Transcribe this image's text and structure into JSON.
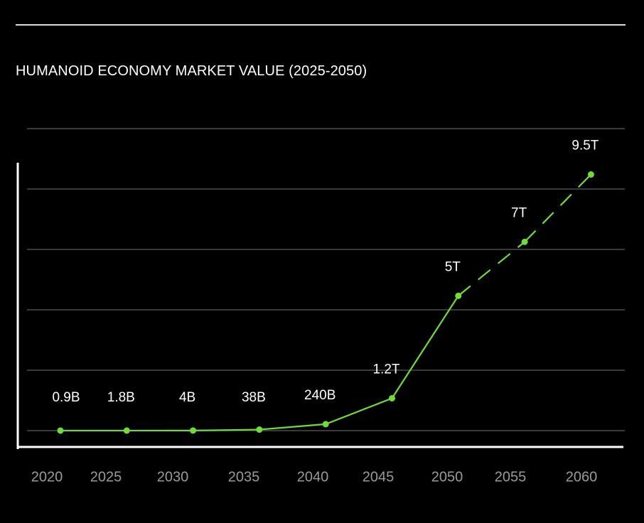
{
  "chart_data": {
    "type": "line",
    "title": "HUMANOID ECONOMY MARKET VALUE (2025-2050)",
    "xlabel": "",
    "ylabel": "",
    "x_ticks": [
      "2020",
      "2025",
      "2030",
      "2035",
      "2040",
      "2045",
      "2050",
      "2055",
      "2060"
    ],
    "grid": true,
    "points": [
      {
        "label": "0.9B",
        "value_billion": 0.9,
        "projected": false
      },
      {
        "label": "1.8B",
        "value_billion": 1.8,
        "projected": false
      },
      {
        "label": "4B",
        "value_billion": 4,
        "projected": false
      },
      {
        "label": "38B",
        "value_billion": 38,
        "projected": false
      },
      {
        "label": "240B",
        "value_billion": 240,
        "projected": false
      },
      {
        "label": "1.2T",
        "value_billion": 1200,
        "projected": false
      },
      {
        "label": "5T",
        "value_billion": 5000,
        "projected": false
      },
      {
        "label": "7T",
        "value_billion": 7000,
        "projected": true
      },
      {
        "label": "9.5T",
        "value_billion": 9500,
        "projected": true
      }
    ],
    "colors": {
      "line": "#6fdc3c",
      "grid": "#3a3a3a",
      "axis": "#ffffff",
      "tick_text": "#9a9a9a",
      "label_text": "#ffffff"
    }
  }
}
